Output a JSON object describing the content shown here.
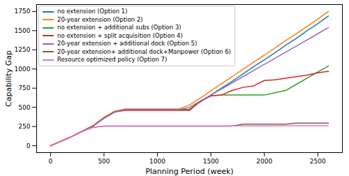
{
  "chart_data": {
    "type": "line",
    "x_label": "Planning Period (week)",
    "y_label": "Capability Gap",
    "x": [
      0,
      100,
      200,
      300,
      400,
      500,
      600,
      700,
      800,
      900,
      1000,
      1100,
      1200,
      1300,
      1400,
      1500,
      1600,
      1700,
      1800,
      1900,
      2000,
      2100,
      2200,
      2300,
      2400,
      2500,
      2600
    ],
    "series": [
      {
        "name": "no extension (Option 1)",
        "color": "#1f77b4",
        "values": [
          0,
          60,
          120,
          190,
          260,
          360,
          440,
          470,
          470,
          470,
          470,
          470,
          470,
          475,
          570,
          660,
          750,
          840,
          935,
          1030,
          1120,
          1210,
          1310,
          1400,
          1500,
          1590,
          1690
        ]
      },
      {
        "name": "20-year extension (Option 2)",
        "color": "#ff7f0e",
        "values": [
          0,
          60,
          120,
          190,
          265,
          370,
          450,
          480,
          480,
          480,
          480,
          480,
          480,
          530,
          620,
          715,
          810,
          900,
          995,
          1090,
          1180,
          1275,
          1370,
          1460,
          1555,
          1650,
          1750
        ]
      },
      {
        "name": "no extension + additional subs (Option 3)",
        "color": "#2ca02c",
        "values": [
          0,
          60,
          120,
          190,
          260,
          360,
          440,
          470,
          470,
          470,
          470,
          470,
          470,
          470,
          580,
          650,
          660,
          660,
          660,
          660,
          660,
          690,
          720,
          800,
          880,
          960,
          1040
        ]
      },
      {
        "name": "no extension + split acquisition (Option 4)",
        "color": "#d62728",
        "values": [
          0,
          60,
          120,
          190,
          260,
          360,
          440,
          460,
          460,
          460,
          460,
          460,
          460,
          460,
          580,
          650,
          660,
          720,
          760,
          780,
          850,
          860,
          880,
          900,
          920,
          950,
          970
        ]
      },
      {
        "name": "20-year extension + additional dock (Option 5)",
        "color": "#9467bd",
        "values": [
          0,
          60,
          120,
          190,
          260,
          360,
          440,
          470,
          470,
          470,
          470,
          470,
          470,
          500,
          580,
          660,
          740,
          820,
          900,
          980,
          1060,
          1140,
          1220,
          1300,
          1380,
          1460,
          1540
        ]
      },
      {
        "name": "20-year extension+ additional dock+Manpower (Option 6)",
        "color": "#8c564b",
        "values": [
          0,
          60,
          120,
          190,
          240,
          255,
          255,
          255,
          255,
          255,
          255,
          255,
          255,
          255,
          255,
          255,
          255,
          255,
          280,
          280,
          280,
          280,
          280,
          295,
          295,
          295,
          295
        ]
      },
      {
        "name": "Resource optimized policy (Option 7)",
        "color": "#e377c2",
        "values": [
          0,
          60,
          120,
          190,
          240,
          255,
          255,
          255,
          255,
          255,
          255,
          255,
          255,
          255,
          255,
          255,
          255,
          258,
          258,
          258,
          258,
          258,
          260,
          260,
          260,
          260,
          260
        ]
      }
    ],
    "xlim": [
      -130,
      2730
    ],
    "ylim": [
      -90,
      1840
    ],
    "xticks": [
      0,
      500,
      1000,
      1500,
      2000,
      2500
    ],
    "yticks": [
      0,
      250,
      500,
      750,
      1000,
      1250,
      1500,
      1750
    ],
    "legend": "upper left",
    "grid": false
  }
}
